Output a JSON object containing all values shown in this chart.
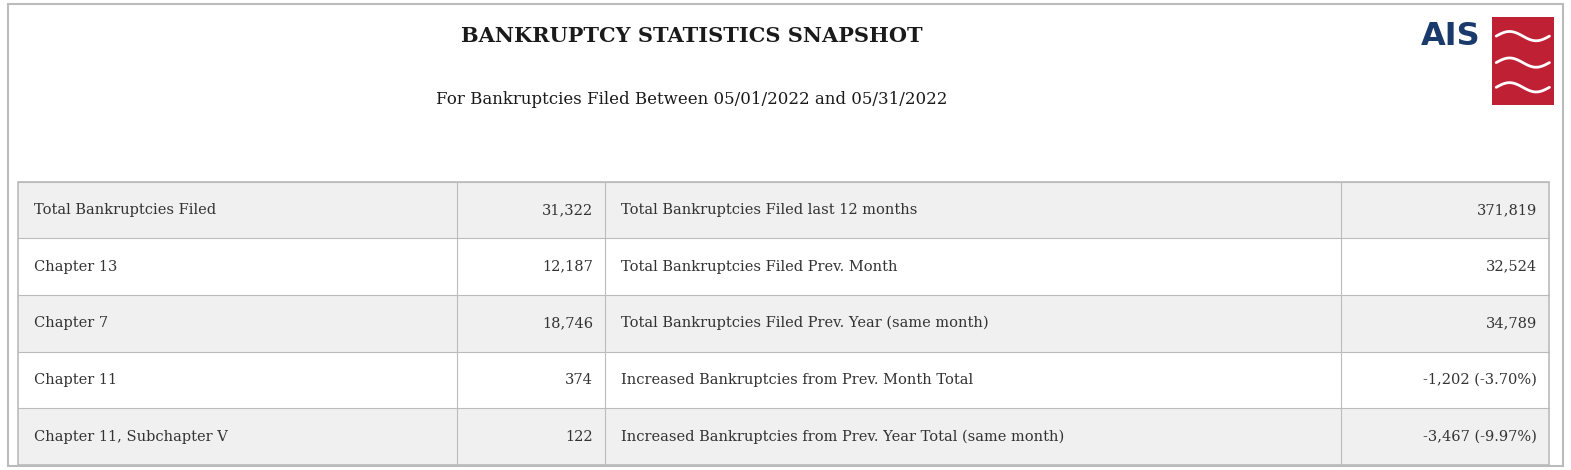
{
  "title": "BANKRUPTCY STATISTICS SNAPSHOT",
  "subtitle": "For Bankruptcies Filed Between 05/01/2022 and 05/31/2022",
  "rows": [
    [
      "Total Bankruptcies Filed",
      "31,322",
      "Total Bankruptcies Filed last 12 months",
      "371,819"
    ],
    [
      "Chapter 13",
      "12,187",
      "Total Bankruptcies Filed Prev. Month",
      "32,524"
    ],
    [
      "Chapter 7",
      "18,746",
      "Total Bankruptcies Filed Prev. Year (same month)",
      "34,789"
    ],
    [
      "Chapter 11",
      "374",
      "Increased Bankruptcies from Prev. Month Total",
      "-1,202 (-3.70%)"
    ],
    [
      "Chapter 11, Subchapter V",
      "122",
      "Increased Bankruptcies from Prev. Year Total (same month)",
      "-3,467 (-9.97%)"
    ]
  ],
  "bg_color": "#ffffff",
  "row_bg_odd": "#f0f0f0",
  "row_bg_even": "#ffffff",
  "border_color": "#bbbbbb",
  "title_color": "#1a1a1a",
  "text_color": "#333333",
  "title_fontsize": 15,
  "subtitle_fontsize": 12,
  "cell_fontsize": 10.5,
  "ais_text_color": "#1a3a6b",
  "ais_red_color": "#bf2033"
}
